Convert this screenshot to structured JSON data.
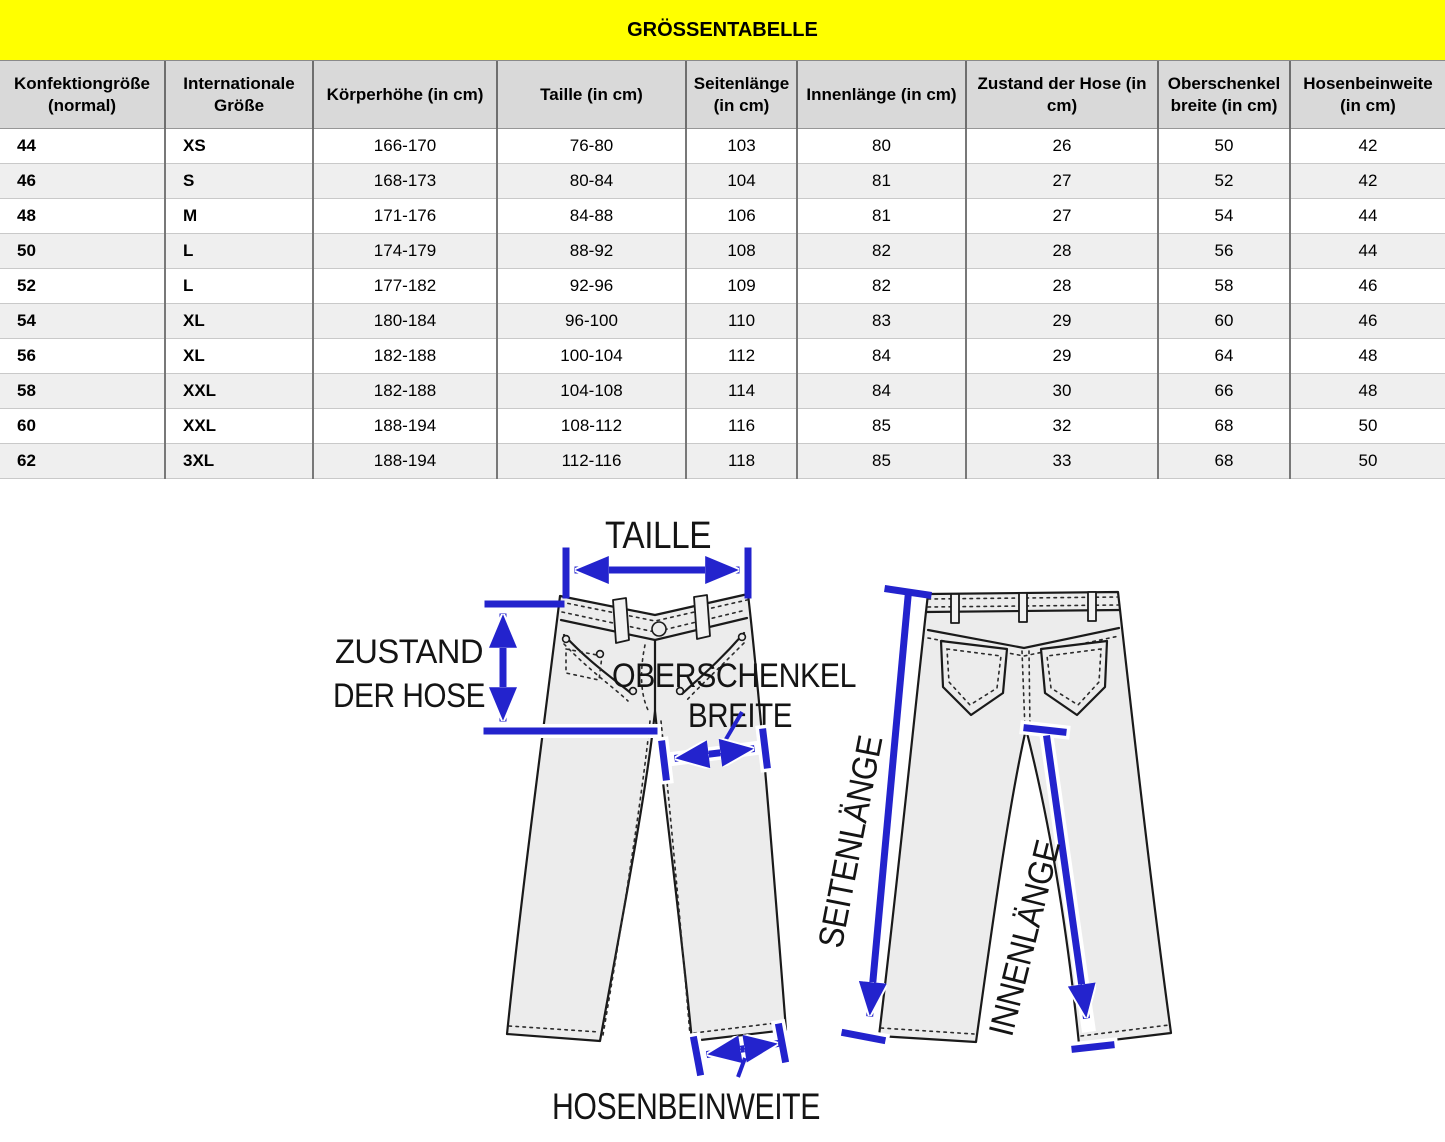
{
  "title": "GRÖSSENTABELLE",
  "table": {
    "columns": [
      "Konfektiongröße (normal)",
      "Internationale Größe",
      "Körperhöhe (in cm)",
      "Taille (in cm)",
      "Seitenlänge (in cm)",
      "Innenlänge (in cm)",
      "Zustand der Hose  (in cm)",
      "Oberschenkel breite  (in cm)",
      "Hosenbeinweite (in cm)"
    ],
    "rows": [
      [
        "44",
        "XS",
        "166-170",
        "76-80",
        "103",
        "80",
        "26",
        "50",
        "42"
      ],
      [
        "46",
        "S",
        "168-173",
        "80-84",
        "104",
        "81",
        "27",
        "52",
        "42"
      ],
      [
        "48",
        "M",
        "171-176",
        "84-88",
        "106",
        "81",
        "27",
        "54",
        "44"
      ],
      [
        "50",
        "L",
        "174-179",
        "88-92",
        "108",
        "82",
        "28",
        "56",
        "44"
      ],
      [
        "52",
        "L",
        "177-182",
        "92-96",
        "109",
        "82",
        "28",
        "58",
        "46"
      ],
      [
        "54",
        "XL",
        "180-184",
        "96-100",
        "110",
        "83",
        "29",
        "60",
        "46"
      ],
      [
        "56",
        "XL",
        "182-188",
        "100-104",
        "112",
        "84",
        "29",
        "64",
        "48"
      ],
      [
        "58",
        "XXL",
        "182-188",
        "104-108",
        "114",
        "84",
        "30",
        "66",
        "48"
      ],
      [
        "60",
        "XXL",
        "188-194",
        "108-112",
        "116",
        "85",
        "32",
        "68",
        "50"
      ],
      [
        "62",
        "3XL",
        "188-194",
        "112-116",
        "118",
        "85",
        "33",
        "68",
        "50"
      ]
    ]
  },
  "diagram": {
    "labels": {
      "taille": "TAILLE",
      "zustand_line1": "ZUSTAND",
      "zustand_line2": "DER HOSE",
      "oberschenkel_line1": "OBERSCHENKEL",
      "oberschenkel_line2": "BREITE",
      "hosenbeinweite": "HOSENBEINWEITE",
      "seitenlaenge": "SEITENLÄNGE",
      "innenlaenge": "INNENLÄNGE"
    }
  },
  "colors": {
    "title_bg": "#ffff00",
    "header_bg": "#d9d9d9",
    "row_alt_bg": "#efefef",
    "arrow": "#2323cd",
    "pants_fill": "#ececec"
  }
}
